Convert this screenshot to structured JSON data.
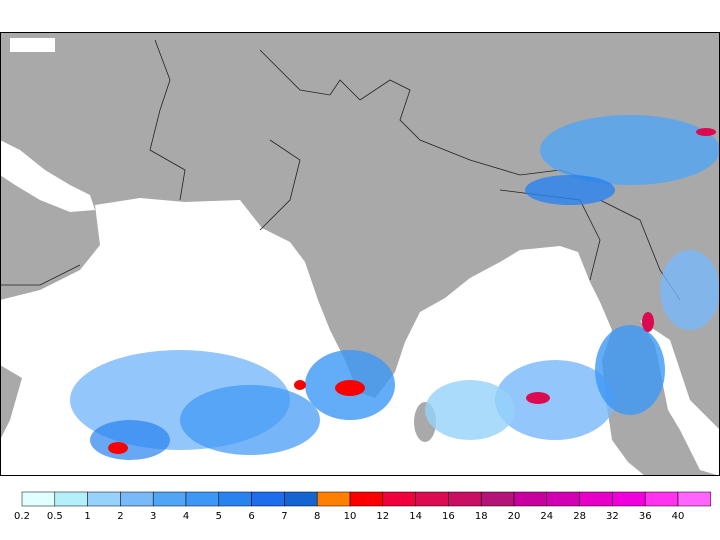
{
  "colorbar": {
    "levels": [
      0.2,
      0.5,
      1,
      2,
      3,
      4,
      5,
      6,
      7,
      8,
      10,
      12,
      14,
      16,
      18,
      20,
      24,
      28,
      32,
      36,
      40
    ],
    "colors": [
      "#e1ffff",
      "#b4f0fa",
      "#96d2fa",
      "#78b9fa",
      "#50a5f5",
      "#3c97f5",
      "#2882f0",
      "#1e6eeb",
      "#1464d2",
      "#ff7f00",
      "#fa0000",
      "#f0003c",
      "#dc0a50",
      "#c80f64",
      "#b41478",
      "#c800a0",
      "#d200b4",
      "#e600c8",
      "#f000dc",
      "#ff32f0",
      "#ff64ff"
    ]
  }
}
